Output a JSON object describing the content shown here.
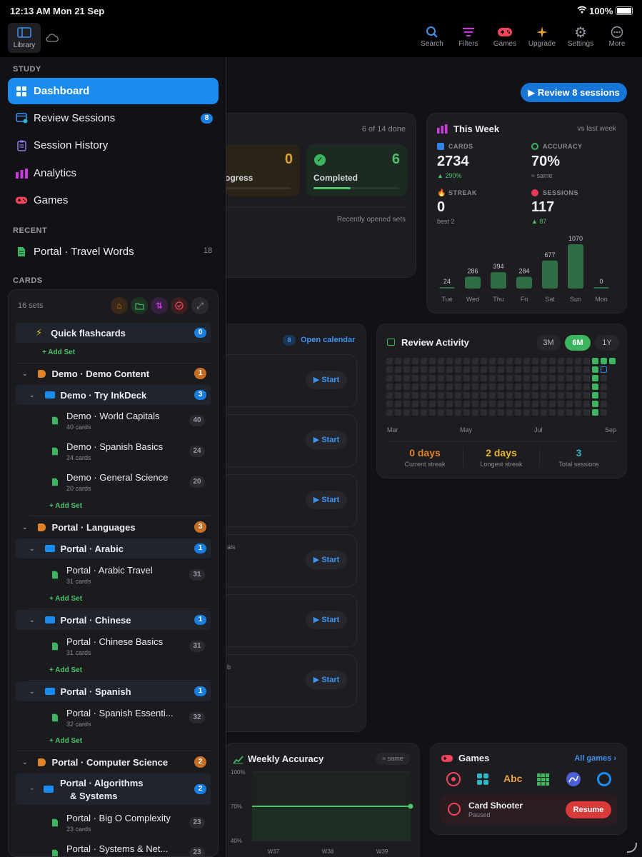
{
  "status_bar": {
    "time": "12:13 AM",
    "date": "Mon 21 Sep",
    "battery": "100%"
  },
  "top_bar": {
    "library_label": "Library",
    "buttons": [
      {
        "label": "Search",
        "icon": "search-icon"
      },
      {
        "label": "Filters",
        "icon": "filters-icon"
      },
      {
        "label": "Games",
        "icon": "gamepad-icon"
      },
      {
        "label": "Upgrade",
        "icon": "sparkle-icon"
      },
      {
        "label": "Settings",
        "icon": "gear-icon"
      },
      {
        "label": "More",
        "icon": "ellipsis-icon"
      }
    ]
  },
  "sidebar": {
    "study_label": "STUDY",
    "study_items": [
      {
        "label": "Dashboard",
        "icon": "grid-icon",
        "active": true
      },
      {
        "label": "Review Sessions",
        "icon": "review-icon",
        "badge": "8"
      },
      {
        "label": "Session History",
        "icon": "clipboard-icon"
      },
      {
        "label": "Analytics",
        "icon": "bar-chart-icon"
      },
      {
        "label": "Games",
        "icon": "gamepad-icon"
      }
    ],
    "recent_label": "RECENT",
    "recent_items": [
      {
        "label": "Portal · Travel Words",
        "count": "18"
      }
    ],
    "cards_label": "CARDS"
  },
  "cards_panel": {
    "sets_count": "16 sets",
    "quick_flashcards": {
      "label": "Quick flashcards",
      "badge": "0",
      "add": "+ Add Set"
    },
    "groups": {
      "demo": {
        "label": "Demo · Demo Content",
        "badge": "1",
        "folder": {
          "label": "Demo · Try InkDeck",
          "badge": "3"
        },
        "sets": [
          {
            "name": "Demo · World Capitals",
            "cards": "40 cards",
            "count": "40"
          },
          {
            "name": "Demo · Spanish Basics",
            "cards": "24 cards",
            "count": "24"
          },
          {
            "name": "Demo · General Science",
            "cards": "20 cards",
            "count": "20"
          }
        ],
        "add": "+ Add Set"
      },
      "languages": {
        "label": "Portal · Languages",
        "badge": "3",
        "arabic": {
          "label": "Portal · Arabic",
          "badge": "1",
          "set": {
            "name": "Portal · Arabic Travel",
            "cards": "31 cards",
            "count": "31"
          },
          "add": "+ Add Set"
        },
        "chinese": {
          "label": "Portal · Chinese",
          "badge": "1",
          "set": {
            "name": "Portal · Chinese Basics",
            "cards": "31 cards",
            "count": "31"
          },
          "add": "+ Add Set"
        },
        "spanish": {
          "label": "Portal · Spanish",
          "badge": "1",
          "set": {
            "name": "Portal · Spanish Essenti...",
            "cards": "32 cards",
            "count": "32"
          },
          "add": "+ Add Set"
        }
      },
      "cs": {
        "label": "Portal · Computer Science",
        "badge": "2",
        "algos": {
          "label_line1": "Portal · Algorithms",
          "label_line2": "& Systems",
          "badge": "2"
        },
        "sets": [
          {
            "name": "Portal · Big O Complexity",
            "cards": "23 cards",
            "count": "23"
          },
          {
            "name": "Portal · Systems & Net...",
            "count": "23"
          }
        ]
      }
    }
  },
  "dashboard": {
    "review_button": "▶ Review 8 sessions",
    "progress_card": {
      "done": "6 of 14 done",
      "in_progress_count": "0",
      "in_progress_label": "ogress",
      "completed_count": "6",
      "completed_label": "Completed",
      "completed_fraction": 0.43,
      "recent_note": "Recently opened sets"
    },
    "this_week": {
      "title": "This Week",
      "compare": "vs last week",
      "cards_label": "CARDS",
      "cards_value": "2734",
      "cards_delta": "▲ 290%",
      "accuracy_label": "ACCURACY",
      "accuracy_value": "70%",
      "accuracy_delta": "≈ same",
      "streak_label": "STREAK",
      "streak_value": "0",
      "streak_sub": "best 2",
      "sessions_label": "SESSIONS",
      "sessions_value": "117",
      "sessions_delta": "▲ 87"
    },
    "calendar": {
      "badge": "8",
      "link": "Open calendar",
      "start_label": "▶ Start",
      "fragment_1": "als",
      "fragment_2": "b"
    },
    "review_activity": {
      "title": "Review Activity",
      "ranges": [
        "3M",
        "6M",
        "1Y"
      ],
      "active_range": "6M",
      "months": [
        "Mar",
        "May",
        "Jul",
        "Sep"
      ],
      "current_streak": "0 days",
      "current_streak_label": "Current streak",
      "longest_streak": "2 days",
      "longest_streak_label": "Longest streak",
      "total_sessions": "3",
      "total_sessions_label": "Total sessions"
    },
    "weekly_accuracy": {
      "title": "Weekly Accuracy",
      "badge": "≈ same"
    },
    "games": {
      "title": "Games",
      "link": "All games ›",
      "abc_label": "Abc",
      "current_game": "Card Shooter",
      "current_status": "Paused",
      "resume": "Resume"
    }
  },
  "chart_data": [
    {
      "type": "bar",
      "categories": [
        "Tue",
        "Wed",
        "Thu",
        "Fri",
        "Sat",
        "Sun",
        "Mon"
      ],
      "values": [
        24,
        286,
        394,
        284,
        677,
        1070,
        0
      ],
      "color": "#2f6e45"
    },
    {
      "type": "line",
      "x": [
        "W37",
        "W38",
        "W39"
      ],
      "y_ticks": [
        "100%",
        "70%",
        "40%"
      ],
      "ylim": [
        40,
        100
      ],
      "values": [
        70,
        70,
        70
      ],
      "color": "#4cc36b"
    }
  ]
}
